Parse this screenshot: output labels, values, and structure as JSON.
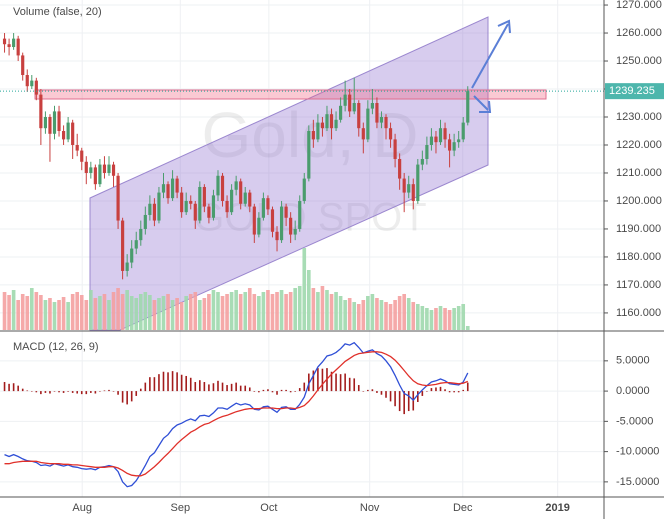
{
  "chart_data": {
    "type": "candlestick",
    "title": "Gold, D",
    "subtitle": "GOLD SPOT",
    "volume_label": "Volume (false, 20)",
    "grid": true,
    "up_color": "#4a9c6d",
    "down_color": "#c8403f",
    "volume_up_color": "#9fd8ad",
    "volume_down_color": "#f4a0a0",
    "xlim": [
      -1,
      132
    ],
    "xticks": [
      {
        "value": 17.1,
        "label": "Aug"
      },
      {
        "value": 38.7,
        "label": "Sep"
      },
      {
        "value": 58.2,
        "label": "Oct"
      },
      {
        "value": 80.4,
        "label": "Nov"
      },
      {
        "value": 100.9,
        "label": "Dec"
      },
      {
        "value": 121.8,
        "label": "2019"
      }
    ],
    "ylim": [
      1153.9,
      1271.8
    ],
    "yticks": [
      {
        "value": 1160,
        "label": "1160.000"
      },
      {
        "value": 1170,
        "label": "1170.000"
      },
      {
        "value": 1180,
        "label": "1180.000"
      },
      {
        "value": 1190,
        "label": "1190.000"
      },
      {
        "value": 1200,
        "label": "1200.000"
      },
      {
        "value": 1210,
        "label": "1210.000"
      },
      {
        "value": 1220,
        "label": "1220.000"
      },
      {
        "value": 1230,
        "label": "1230.000"
      },
      {
        "value": 1240,
        "label": "1240.000"
      },
      {
        "value": 1250,
        "label": "1250.000"
      },
      {
        "value": 1260,
        "label": "1260.000"
      },
      {
        "value": 1270,
        "label": "1270.000"
      }
    ],
    "ohlc": [
      [
        1258,
        1260,
        1253,
        1256
      ],
      [
        1256,
        1258,
        1252,
        1255
      ],
      [
        1255,
        1260,
        1254,
        1258
      ],
      [
        1258,
        1259,
        1250,
        1252
      ],
      [
        1252,
        1253,
        1243,
        1245
      ],
      [
        1245,
        1247,
        1239,
        1241
      ],
      [
        1241,
        1245,
        1240,
        1243
      ],
      [
        1243,
        1244,
        1236,
        1238
      ],
      [
        1238,
        1240,
        1220,
        1226
      ],
      [
        1226,
        1232,
        1224,
        1230
      ],
      [
        1230,
        1231,
        1214,
        1224
      ],
      [
        1224,
        1234,
        1222,
        1232
      ],
      [
        1232,
        1234,
        1223,
        1225
      ],
      [
        1225,
        1227,
        1220,
        1222
      ],
      [
        1222,
        1230,
        1221,
        1228
      ],
      [
        1228,
        1229,
        1215,
        1220
      ],
      [
        1220,
        1224,
        1216,
        1218
      ],
      [
        1218,
        1219,
        1211,
        1214
      ],
      [
        1214,
        1216,
        1206,
        1210
      ],
      [
        1210,
        1214,
        1208,
        1212
      ],
      [
        1212,
        1213,
        1204,
        1206
      ],
      [
        1206,
        1215,
        1205,
        1213
      ],
      [
        1213,
        1216,
        1208,
        1210
      ],
      [
        1210,
        1216,
        1209,
        1213
      ],
      [
        1213,
        1214,
        1205,
        1209
      ],
      [
        1209,
        1210,
        1190,
        1193
      ],
      [
        1193,
        1194,
        1172,
        1175
      ],
      [
        1175,
        1181,
        1173,
        1178
      ],
      [
        1178,
        1186,
        1176,
        1183
      ],
      [
        1183,
        1189,
        1181,
        1186
      ],
      [
        1186,
        1193,
        1184,
        1190
      ],
      [
        1190,
        1198,
        1188,
        1195
      ],
      [
        1195,
        1202,
        1193,
        1199
      ],
      [
        1199,
        1201,
        1191,
        1193
      ],
      [
        1193,
        1205,
        1192,
        1203
      ],
      [
        1203,
        1210,
        1201,
        1206
      ],
      [
        1206,
        1207,
        1199,
        1201
      ],
      [
        1201,
        1211,
        1200,
        1208
      ],
      [
        1208,
        1209,
        1201,
        1203
      ],
      [
        1203,
        1205,
        1194,
        1196
      ],
      [
        1196,
        1203,
        1195,
        1200
      ],
      [
        1200,
        1202,
        1197,
        1199
      ],
      [
        1199,
        1200,
        1190,
        1193
      ],
      [
        1193,
        1207,
        1192,
        1205
      ],
      [
        1205,
        1206,
        1196,
        1198
      ],
      [
        1198,
        1199,
        1192,
        1194
      ],
      [
        1194,
        1204,
        1193,
        1202
      ],
      [
        1202,
        1211,
        1200,
        1209
      ],
      [
        1209,
        1210,
        1198,
        1200
      ],
      [
        1200,
        1202,
        1194,
        1196
      ],
      [
        1196,
        1206,
        1195,
        1204
      ],
      [
        1204,
        1209,
        1202,
        1207
      ],
      [
        1207,
        1208,
        1197,
        1199
      ],
      [
        1199,
        1205,
        1198,
        1203
      ],
      [
        1203,
        1204,
        1196,
        1198
      ],
      [
        1198,
        1199,
        1185,
        1188
      ],
      [
        1188,
        1196,
        1187,
        1194
      ],
      [
        1194,
        1203,
        1193,
        1201
      ],
      [
        1201,
        1202,
        1195,
        1197
      ],
      [
        1197,
        1198,
        1187,
        1189
      ],
      [
        1189,
        1191,
        1182,
        1186
      ],
      [
        1186,
        1200,
        1185,
        1198
      ],
      [
        1198,
        1199,
        1191,
        1194
      ],
      [
        1194,
        1196,
        1185,
        1188
      ],
      [
        1188,
        1193,
        1186,
        1190
      ],
      [
        1190,
        1202,
        1189,
        1200
      ],
      [
        1200,
        1210,
        1199,
        1208
      ],
      [
        1208,
        1227,
        1207,
        1225
      ],
      [
        1225,
        1229,
        1219,
        1222
      ],
      [
        1222,
        1231,
        1221,
        1228
      ],
      [
        1228,
        1230,
        1223,
        1226
      ],
      [
        1226,
        1234,
        1225,
        1231
      ],
      [
        1231,
        1233,
        1222,
        1226
      ],
      [
        1226,
        1232,
        1225,
        1229
      ],
      [
        1229,
        1237,
        1228,
        1234
      ],
      [
        1234,
        1243,
        1232,
        1238
      ],
      [
        1238,
        1240,
        1230,
        1232
      ],
      [
        1232,
        1244,
        1231,
        1235
      ],
      [
        1235,
        1236,
        1223,
        1226
      ],
      [
        1226,
        1228,
        1217,
        1222
      ],
      [
        1222,
        1236,
        1221,
        1233
      ],
      [
        1233,
        1240,
        1231,
        1235
      ],
      [
        1235,
        1237,
        1226,
        1228
      ],
      [
        1228,
        1232,
        1226,
        1230
      ],
      [
        1230,
        1231,
        1222,
        1226
      ],
      [
        1226,
        1228,
        1219,
        1222
      ],
      [
        1222,
        1224,
        1212,
        1215
      ],
      [
        1215,
        1217,
        1204,
        1208
      ],
      [
        1208,
        1210,
        1196,
        1203
      ],
      [
        1203,
        1209,
        1201,
        1206
      ],
      [
        1206,
        1208,
        1197,
        1200
      ],
      [
        1200,
        1215,
        1199,
        1213
      ],
      [
        1213,
        1218,
        1211,
        1215
      ],
      [
        1215,
        1223,
        1213,
        1220
      ],
      [
        1220,
        1226,
        1218,
        1223
      ],
      [
        1223,
        1225,
        1217,
        1221
      ],
      [
        1221,
        1229,
        1220,
        1226
      ],
      [
        1226,
        1228,
        1219,
        1222
      ],
      [
        1222,
        1224,
        1212,
        1218
      ],
      [
        1218,
        1224,
        1216,
        1221
      ],
      [
        1221,
        1225,
        1219,
        1222
      ],
      [
        1222,
        1230,
        1221,
        1228
      ],
      [
        1228,
        1241,
        1227,
        1239.235
      ]
    ],
    "volume": [
      38,
      35,
      40,
      30,
      36,
      34,
      42,
      38,
      35,
      30,
      32,
      28,
      30,
      33,
      28,
      36,
      38,
      35,
      30,
      40,
      32,
      34,
      36,
      30,
      38,
      42,
      36,
      40,
      34,
      32,
      36,
      38,
      35,
      30,
      32,
      34,
      36,
      30,
      32,
      28,
      34,
      36,
      38,
      30,
      32,
      36,
      40,
      38,
      34,
      36,
      38,
      40,
      36,
      38,
      42,
      36,
      34,
      38,
      40,
      36,
      38,
      40,
      36,
      38,
      42,
      44,
      82,
      60,
      42,
      38,
      44,
      40,
      36,
      38,
      34,
      30,
      32,
      28,
      26,
      30,
      34,
      36,
      32,
      30,
      28,
      26,
      30,
      34,
      36,
      32,
      28,
      26,
      24,
      22,
      20,
      22,
      24,
      22,
      20,
      22,
      24,
      26,
      4
    ],
    "macd": {
      "title": "MACD (12, 26, 9)",
      "ylim": [
        -17.5,
        9.6
      ],
      "yticks": [
        {
          "value": 5,
          "label": "5.0000"
        },
        {
          "value": 0,
          "label": "0.0000"
        },
        {
          "value": -5,
          "label": "-5.0000"
        },
        {
          "value": -10,
          "label": "-10.0000"
        },
        {
          "value": -15,
          "label": "-15.0000"
        }
      ],
      "macd_color": "#2f4fd6",
      "signal_color": "#e0302a",
      "histogram_color": "#a31c1c",
      "macd_values": [
        -10.5,
        -10.8,
        -10.5,
        -10.8,
        -11.2,
        -11.5,
        -11.6,
        -11.8,
        -12.3,
        -12.2,
        -12.4,
        -12.0,
        -12.2,
        -12.4,
        -12.2,
        -12.5,
        -12.6,
        -12.8,
        -12.9,
        -12.8,
        -13.0,
        -12.6,
        -12.5,
        -12.3,
        -12.5,
        -13.3,
        -15.0,
        -15.8,
        -15.6,
        -14.8,
        -13.6,
        -12.3,
        -10.8,
        -10.2,
        -9.0,
        -7.8,
        -7.2,
        -6.2,
        -5.6,
        -5.3,
        -4.9,
        -4.6,
        -4.9,
        -4.1,
        -4.0,
        -4.2,
        -3.6,
        -2.8,
        -2.8,
        -3.0,
        -2.5,
        -2.0,
        -2.3,
        -2.1,
        -2.3,
        -3.0,
        -3.1,
        -2.6,
        -2.5,
        -3.0,
        -3.5,
        -2.7,
        -2.6,
        -3.0,
        -3.0,
        -2.2,
        -1.0,
        1.2,
        2.6,
        4.0,
        4.8,
        5.8,
        6.0,
        6.4,
        7.0,
        7.8,
        7.6,
        8.0,
        7.2,
        6.3,
        6.6,
        6.8,
        6.2,
        5.8,
        5.0,
        4.0,
        2.6,
        1.0,
        -0.4,
        -0.8,
        -1.5,
        -0.6,
        0.2,
        0.9,
        1.5,
        1.7,
        2.0,
        1.7,
        1.2,
        1.1,
        1.0,
        1.5,
        3.0
      ],
      "signal_values": [
        -12.0,
        -12.0,
        -11.8,
        -11.7,
        -11.6,
        -11.6,
        -11.6,
        -11.6,
        -11.8,
        -11.9,
        -12.0,
        -12.0,
        -12.0,
        -12.1,
        -12.1,
        -12.2,
        -12.2,
        -12.3,
        -12.4,
        -12.5,
        -12.6,
        -12.6,
        -12.6,
        -12.5,
        -12.5,
        -12.7,
        -13.1,
        -13.6,
        -13.9,
        -14.0,
        -14.0,
        -13.7,
        -13.1,
        -12.5,
        -11.8,
        -11.0,
        -10.3,
        -9.5,
        -8.7,
        -8.0,
        -7.4,
        -6.8,
        -6.4,
        -5.9,
        -5.5,
        -5.3,
        -4.9,
        -4.5,
        -4.2,
        -4.0,
        -3.7,
        -3.4,
        -3.2,
        -3.0,
        -2.9,
        -2.9,
        -2.9,
        -2.8,
        -2.8,
        -2.8,
        -2.9,
        -2.9,
        -2.8,
        -2.8,
        -2.9,
        -2.7,
        -2.4,
        -1.7,
        -0.8,
        0.2,
        1.1,
        2.0,
        2.8,
        3.5,
        4.2,
        4.9,
        5.4,
        5.9,
        6.2,
        6.3,
        6.4,
        6.5,
        6.5,
        6.4,
        6.1,
        5.7,
        5.1,
        4.3,
        3.4,
        2.5,
        1.7,
        1.2,
        1.0,
        0.9,
        1.0,
        1.1,
        1.3,
        1.4,
        1.4,
        1.3,
        1.2,
        1.3,
        1.6
      ],
      "histogram_values": [
        1.5,
        1.2,
        1.3,
        0.9,
        0.4,
        0.1,
        0.0,
        -0.2,
        -0.5,
        -0.3,
        -0.4,
        0.0,
        -0.2,
        -0.3,
        -0.1,
        -0.3,
        -0.4,
        -0.5,
        -0.5,
        -0.3,
        -0.4,
        0.0,
        0.1,
        0.2,
        0.0,
        -0.6,
        -1.9,
        -2.2,
        -1.7,
        -0.8,
        0.4,
        1.4,
        2.3,
        2.3,
        2.8,
        3.2,
        3.1,
        3.3,
        3.1,
        2.7,
        2.5,
        2.2,
        1.5,
        1.8,
        1.5,
        1.1,
        1.3,
        1.7,
        1.4,
        1.0,
        1.2,
        1.4,
        0.9,
        0.9,
        0.6,
        -0.1,
        -0.2,
        0.2,
        0.3,
        -0.2,
        -0.6,
        0.2,
        0.2,
        -0.2,
        -0.1,
        0.5,
        1.4,
        2.9,
        3.4,
        3.8,
        3.7,
        3.8,
        3.2,
        2.9,
        2.8,
        2.9,
        2.2,
        2.1,
        1.0,
        0.0,
        0.2,
        0.3,
        -0.3,
        -0.6,
        -1.1,
        -1.7,
        -2.5,
        -3.3,
        -3.8,
        -3.3,
        -3.2,
        -1.8,
        -0.8,
        0.0,
        0.5,
        0.6,
        0.7,
        0.3,
        -0.2,
        -0.2,
        -0.2,
        0.2,
        1.4
      ]
    }
  }
}
